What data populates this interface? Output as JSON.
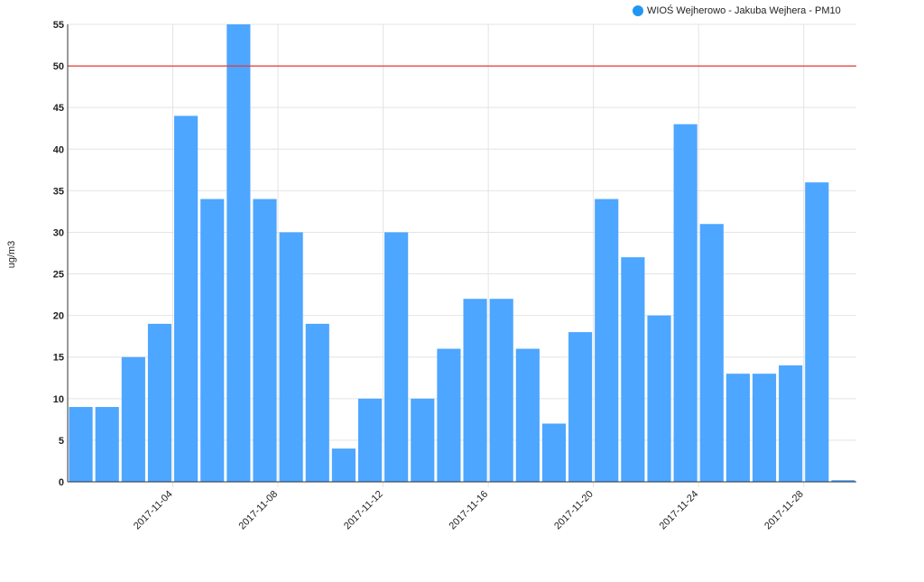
{
  "chart_data": {
    "type": "bar",
    "categories": [
      "2017-11-01",
      "2017-11-02",
      "2017-11-03",
      "2017-11-04",
      "2017-11-05",
      "2017-11-06",
      "2017-11-07",
      "2017-11-08",
      "2017-11-09",
      "2017-11-10",
      "2017-11-11",
      "2017-11-12",
      "2017-11-13",
      "2017-11-14",
      "2017-11-15",
      "2017-11-16",
      "2017-11-17",
      "2017-11-18",
      "2017-11-19",
      "2017-11-20",
      "2017-11-21",
      "2017-11-22",
      "2017-11-23",
      "2017-11-24",
      "2017-11-25",
      "2017-11-26",
      "2017-11-27",
      "2017-11-28",
      "2017-11-29",
      "2017-11-30"
    ],
    "series": [
      {
        "name": "WIOŚ Wejherowo - Jakuba Wejhera - PM10",
        "values": [
          9,
          9,
          15,
          19,
          44,
          34,
          55,
          34,
          30,
          19,
          4,
          10,
          30,
          10,
          16,
          22,
          22,
          16,
          7,
          18,
          34,
          27,
          20,
          43,
          31,
          13,
          13,
          14,
          36,
          0.2
        ],
        "color": "#4da6ff"
      }
    ],
    "x_tick_labels": [
      "2017-11-04",
      "2017-11-08",
      "2017-11-12",
      "2017-11-16",
      "2017-11-20",
      "2017-11-24",
      "2017-11-28"
    ],
    "y_ticks": [
      0,
      5,
      10,
      15,
      20,
      25,
      30,
      35,
      40,
      45,
      50,
      55
    ],
    "ylabel": "ug/m3",
    "xlabel": "",
    "title": "",
    "ylim": [
      0,
      55
    ],
    "threshold": {
      "value": 50,
      "color": "#e53935"
    },
    "grid": true,
    "legend_position": "top-right"
  }
}
